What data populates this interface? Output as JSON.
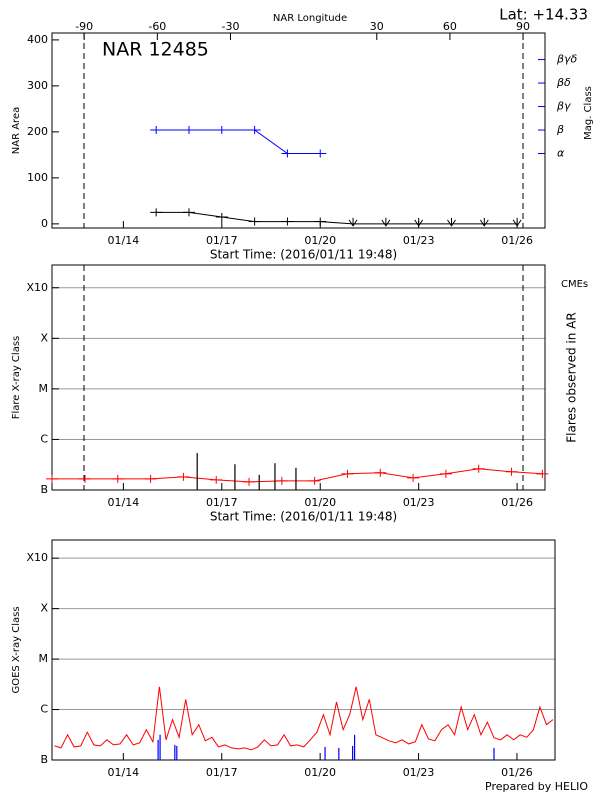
{
  "chart_data": [
    {
      "type": "line",
      "title": "NAR 12485",
      "lat_label": "Lat: +14.33",
      "x2label": "NAR Longitude",
      "xlabel": "Start Time: (2016/01/11 19:48)",
      "ylabel": "NAR Area",
      "y2label": "Mag. Class",
      "xlim": [
        11.825,
        26.85
      ],
      "xticks": [
        {
          "value": 14,
          "label": "01/14"
        },
        {
          "value": 17,
          "label": "01/17"
        },
        {
          "value": 20,
          "label": "01/20"
        },
        {
          "value": 23,
          "label": "01/23"
        },
        {
          "value": 26,
          "label": "01/26"
        }
      ],
      "x2lim": [
        -103.2,
        99
      ],
      "x2ticks": [
        -90,
        -60,
        -30,
        30,
        60,
        90
      ],
      "ylim": [
        -9,
        415
      ],
      "yticks": [
        0,
        100,
        200,
        300,
        400
      ],
      "y2lim": [
        -0.17,
        8.13
      ],
      "y2ticks": [
        {
          "value": 3,
          "label": "α"
        },
        {
          "value": 4,
          "label": "β"
        },
        {
          "value": 5,
          "label": "βγ"
        },
        {
          "value": 6,
          "label": "βδ"
        },
        {
          "value": 7,
          "label": "βγδ"
        }
      ],
      "limb_lines": [
        12.8,
        26.18
      ],
      "series": [
        {
          "color": "#000000",
          "marker": "plus",
          "x": [
            15,
            16,
            17,
            18,
            19,
            20,
            21,
            22,
            23,
            24,
            25,
            26
          ],
          "values": [
            25,
            25,
            15,
            5,
            5,
            5,
            0,
            0,
            0,
            0,
            0,
            0
          ]
        },
        {
          "color": "#0000ff",
          "marker": "plus",
          "axis": "y2",
          "x": [
            15,
            16,
            17,
            18,
            19,
            20
          ],
          "values": [
            4,
            4,
            4,
            4,
            3,
            3
          ]
        }
      ]
    },
    {
      "type": "line",
      "xlabel": "Start Time: (2016/01/11 19:48)",
      "ylabel": "Flare X-ray Class",
      "y2label": "Flares observed in AR",
      "annotation": {
        "text": "CMEs",
        "color": "#ff0000"
      },
      "xlim": [
        11.825,
        26.85
      ],
      "xticks": [
        {
          "value": 14,
          "label": "01/14"
        },
        {
          "value": 17,
          "label": "01/17"
        },
        {
          "value": 20,
          "label": "01/20"
        },
        {
          "value": 23,
          "label": "01/23"
        },
        {
          "value": 26,
          "label": "01/26"
        }
      ],
      "ylim": [
        -7,
        -2.55
      ],
      "yticks": [
        {
          "value": -7,
          "label": "B"
        },
        {
          "value": -6,
          "label": "C"
        },
        {
          "value": -5,
          "label": "M"
        },
        {
          "value": -4,
          "label": "X"
        },
        {
          "value": -3,
          "label": "X10"
        }
      ],
      "grid": true,
      "limb_lines": [
        12.8,
        26.18
      ],
      "series": [
        {
          "color": "#ff0000",
          "marker": "plus",
          "x": [
            11.825,
            12.83,
            13.83,
            14.83,
            15.83,
            16.83,
            17.83,
            18.83,
            19.83,
            20.83,
            21.83,
            22.83,
            23.83,
            24.83,
            25.83,
            26.77
          ],
          "values": [
            -6.78,
            -6.78,
            -6.78,
            -6.78,
            -6.74,
            -6.8,
            -6.84,
            -6.82,
            -6.82,
            -6.68,
            -6.66,
            -6.76,
            -6.68,
            -6.58,
            -6.64,
            -6.68
          ]
        },
        {
          "color": "#000000",
          "style": "spike",
          "x": [
            16.25,
            17.4,
            18.14,
            18.62,
            19.26
          ],
          "values": [
            -6.27,
            -6.49,
            -6.7,
            -6.47,
            -6.56
          ]
        }
      ]
    },
    {
      "type": "line",
      "ylabel": "GOES X-ray Class",
      "footer": "Prepared by HELIO",
      "xlim": [
        11.825,
        27.16
      ],
      "xticks": [
        {
          "value": 14,
          "label": "01/14"
        },
        {
          "value": 17,
          "label": "01/17"
        },
        {
          "value": 20,
          "label": "01/20"
        },
        {
          "value": 23,
          "label": "01/23"
        },
        {
          "value": 26,
          "label": "01/26"
        }
      ],
      "ylim": [
        -7,
        -2.64
      ],
      "yticks": [
        {
          "value": -7,
          "label": "B"
        },
        {
          "value": -6,
          "label": "C"
        },
        {
          "value": -5,
          "label": "M"
        },
        {
          "value": -4,
          "label": "X"
        },
        {
          "value": -3,
          "label": "X10"
        }
      ],
      "grid": true,
      "series": [
        {
          "color": "#ff0000",
          "marker": "none",
          "x": [
            11.9,
            12.1,
            12.3,
            12.5,
            12.7,
            12.9,
            13.1,
            13.3,
            13.5,
            13.7,
            13.9,
            14.1,
            14.3,
            14.5,
            14.7,
            14.9,
            15.1,
            15.3,
            15.5,
            15.7,
            15.9,
            16.1,
            16.3,
            16.5,
            16.7,
            16.9,
            17.1,
            17.3,
            17.5,
            17.7,
            17.9,
            18.1,
            18.3,
            18.5,
            18.7,
            18.9,
            19.1,
            19.3,
            19.5,
            19.7,
            19.9,
            20.1,
            20.3,
            20.5,
            20.7,
            20.9,
            21.1,
            21.3,
            21.5,
            21.7,
            21.9,
            22.1,
            22.3,
            22.5,
            22.7,
            22.9,
            23.1,
            23.3,
            23.5,
            23.7,
            23.9,
            24.1,
            24.3,
            24.5,
            24.7,
            24.9,
            25.1,
            25.3,
            25.5,
            25.7,
            25.9,
            26.1,
            26.3,
            26.5,
            26.7,
            26.9,
            27.1
          ],
          "values": [
            -6.72,
            -6.76,
            -6.5,
            -6.74,
            -6.72,
            -6.45,
            -6.7,
            -6.72,
            -6.6,
            -6.7,
            -6.68,
            -6.5,
            -6.7,
            -6.66,
            -6.4,
            -6.64,
            -5.55,
            -6.6,
            -6.2,
            -6.55,
            -5.8,
            -6.5,
            -6.3,
            -6.62,
            -6.55,
            -6.74,
            -6.7,
            -6.76,
            -6.78,
            -6.76,
            -6.8,
            -6.74,
            -6.6,
            -6.72,
            -6.7,
            -6.5,
            -6.72,
            -6.7,
            -6.74,
            -6.6,
            -6.45,
            -6.1,
            -6.5,
            -5.85,
            -6.4,
            -6.1,
            -5.55,
            -6.2,
            -5.8,
            -6.5,
            -6.56,
            -6.62,
            -6.66,
            -6.6,
            -6.68,
            -6.64,
            -6.3,
            -6.58,
            -6.62,
            -6.4,
            -6.3,
            -6.5,
            -5.95,
            -6.4,
            -6.1,
            -6.5,
            -6.25,
            -6.56,
            -6.6,
            -6.5,
            -6.6,
            -6.5,
            -6.55,
            -6.4,
            -5.95,
            -6.3,
            -6.2
          ]
        },
        {
          "color": "#0000ff",
          "style": "spike",
          "x": [
            15.06,
            15.12,
            15.57,
            15.63,
            20.15,
            20.57,
            20.99,
            21.05,
            25.3
          ],
          "values": [
            -6.6,
            -6.5,
            -6.7,
            -6.72,
            -6.74,
            -6.76,
            -6.72,
            -6.5,
            -6.76
          ]
        }
      ]
    }
  ]
}
